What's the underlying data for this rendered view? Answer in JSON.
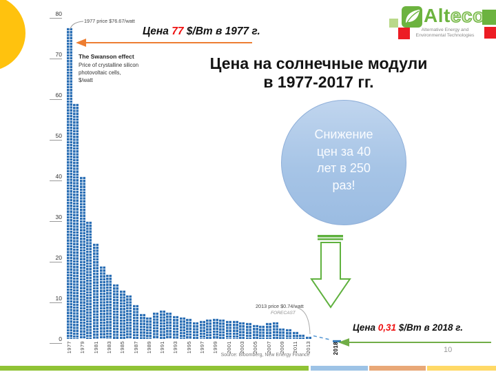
{
  "page": {
    "number": "10"
  },
  "logo": {
    "brand_bold": "Alt",
    "brand_light": "eco",
    "tagline_line1": "Alternative Energy and",
    "tagline_line2": "Environmental Technologies"
  },
  "title": {
    "line1": "Цена на солнечные модули",
    "line2": "в 1977-2017 гг."
  },
  "callout_circle": {
    "line1": "Снижение",
    "line2": "цен за 40",
    "line3": "лет в 250",
    "line4": "раз!"
  },
  "annotation_1977": {
    "prefix": "Цена ",
    "value": "77",
    "suffix": " $/Вт в 1977 г."
  },
  "annotation_2018": {
    "prefix": "Цена ",
    "value": "0,31",
    "suffix": " $/Вт в 2018 г."
  },
  "chart_data": {
    "type": "bar",
    "title": "The Swanson effect",
    "subtitle_lines": [
      "Price of crystalline silicon",
      "photovoltaic cells,",
      "$/watt"
    ],
    "note_1977": "1977 price $76.67/watt",
    "note_2013": "2013 price $0.74/watt",
    "note_forecast": "FORECAST",
    "source": "Source: Bloomberg, New Energy Finance",
    "ylim": [
      0,
      80
    ],
    "yticks": [
      80,
      70,
      60,
      50,
      40,
      30,
      20,
      10,
      0
    ],
    "xtick_step": 2,
    "years": [
      1977,
      1978,
      1979,
      1980,
      1981,
      1982,
      1983,
      1984,
      1985,
      1986,
      1987,
      1988,
      1989,
      1990,
      1991,
      1992,
      1993,
      1994,
      1995,
      1996,
      1997,
      1998,
      1999,
      2000,
      2001,
      2002,
      2003,
      2004,
      2005,
      2006,
      2007,
      2008,
      2009,
      2010,
      2011,
      2012,
      2013
    ],
    "values": [
      76.67,
      58,
      40,
      29,
      23.5,
      18,
      16,
      13.5,
      12,
      10.8,
      8.5,
      6.3,
      5.4,
      6.6,
      7.1,
      6.6,
      5.8,
      5.4,
      5.1,
      4.3,
      4.6,
      5.0,
      5.1,
      4.9,
      4.6,
      4.5,
      4.3,
      4.0,
      3.5,
      3.4,
      4.0,
      4.2,
      2.7,
      2.5,
      1.9,
      1.2,
      0.74
    ],
    "forecast": {
      "year": "2018",
      "value": 0.31
    },
    "legend_position": "none",
    "grid": "off"
  },
  "colors": {
    "bar_blue": "#2a6eb4",
    "forecast_dash_blue": "#2E75B6",
    "accent_orange": "#ED7D31",
    "accent_green_arrow": "#70AD47",
    "accent_green_shape": "#5FB13E",
    "accent_red_text": "#EE1111",
    "yellow_circle": "#FFC20E",
    "circle_blue": "#A6C4E6",
    "footer": [
      "#90C335",
      "#9DC3E6",
      "#E9A877",
      "#FFD966"
    ]
  }
}
